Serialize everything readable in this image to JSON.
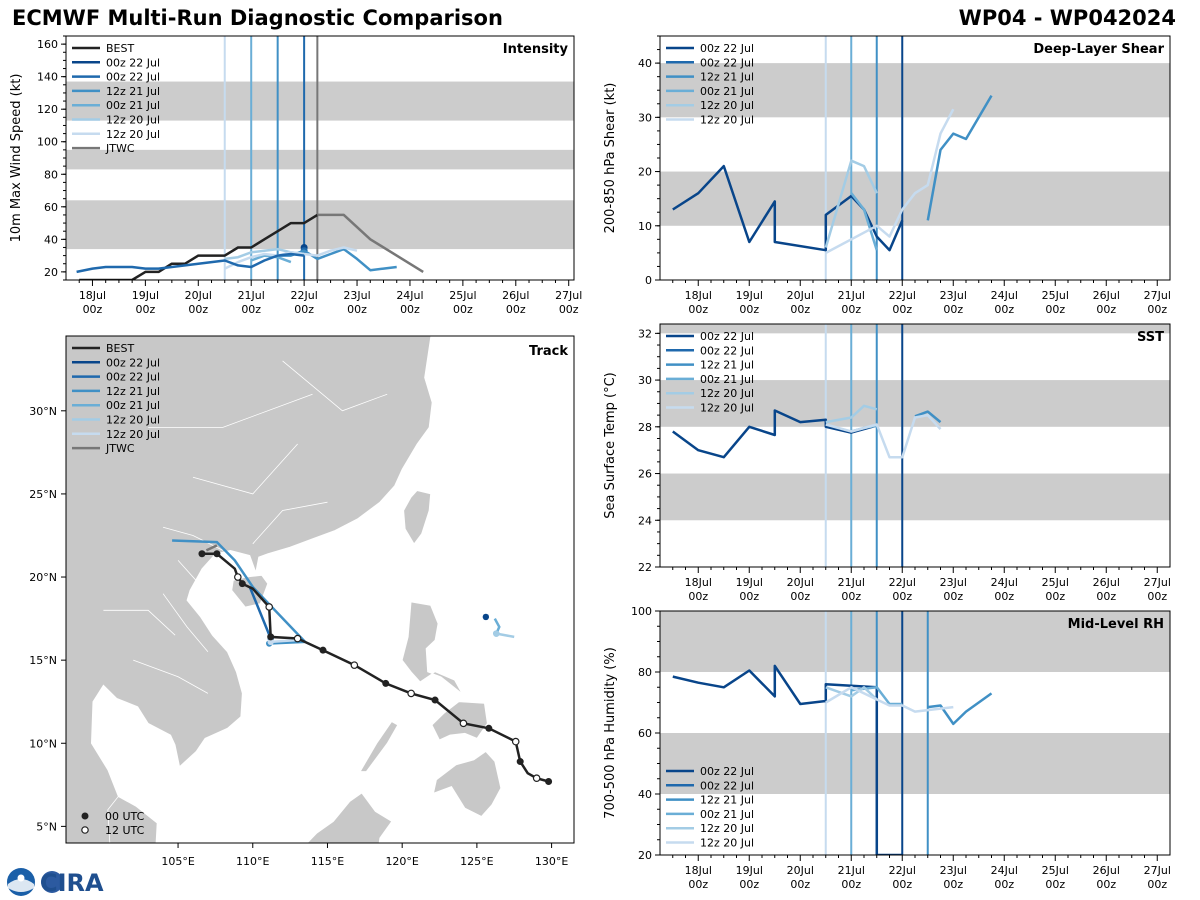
{
  "header": {
    "title": "ECMWF Multi-Run Diagnostic Comparison",
    "storm_id": "WP04 - WP042024"
  },
  "logos": {
    "noaa_text": "NOAA",
    "cira_text": "CIRA"
  },
  "time_ticks": [
    "18Jul\n00z",
    "19Jul\n00z",
    "20Jul\n00z",
    "21Jul\n00z",
    "22Jul\n00z",
    "23Jul\n00z",
    "24Jul\n00z",
    "25Jul\n00z",
    "26Jul\n00z",
    "27Jul\n00z"
  ],
  "colors": {
    "best": "#222222",
    "jtwc": "#777777",
    "r00z22a": "#08458a",
    "r00z22b": "#1f69ad",
    "r12z21": "#4090c5",
    "r00z21": "#6aaed6",
    "r12z20a": "#a3cce5",
    "r12z20b": "#c6dbef",
    "band": "#cccccc"
  },
  "legend_labels": {
    "best": "BEST",
    "r00z22a": "00z 22 Jul",
    "r00z22b": "00z 22 Jul",
    "r12z21": "12z 21 Jul",
    "r00z21": "00z 21 Jul",
    "r12z20a": "12z 20 Jul",
    "r12z20b": "12z 20 Jul",
    "jtwc": "JTWC"
  },
  "chart_data": [
    {
      "id": "intensity",
      "type": "line",
      "title": "Intensity",
      "ylabel": "10m Max Wind Speed (kt)",
      "xlim": [
        -0.5,
        9.1
      ],
      "ylim": [
        15,
        165
      ],
      "yticks": [
        20,
        40,
        60,
        80,
        100,
        120,
        140,
        160
      ],
      "bands": [
        [
          34,
          64
        ],
        [
          83,
          95
        ],
        [
          113,
          137
        ]
      ],
      "vlines": [
        {
          "run": "r12z20b",
          "x": 2.5
        },
        {
          "run": "r00z21",
          "x": 3.0
        },
        {
          "run": "r12z21",
          "x": 3.5
        },
        {
          "run": "r00z22b",
          "x": 4.0
        },
        {
          "run": "jtwc",
          "x": 4.25
        }
      ],
      "series": [
        {
          "key": "best",
          "name": "BEST",
          "x": [
            -0.25,
            0,
            0.25,
            0.5,
            0.75,
            1.0,
            1.25,
            1.5,
            1.75,
            2.0,
            2.25,
            2.5,
            2.75,
            3.0,
            3.25,
            3.5,
            3.75,
            4.0,
            4.25
          ],
          "y": [
            15,
            15,
            15,
            15,
            15,
            20,
            20,
            25,
            25,
            30,
            30,
            30,
            35,
            35,
            40,
            45,
            50,
            50,
            55
          ]
        },
        {
          "key": "r00z22a",
          "name": "00z 22 Jul",
          "x": [
            4.0
          ],
          "y": [
            35
          ],
          "marker": true
        },
        {
          "key": "r00z22b",
          "name": "00z 22 Jul",
          "x": [
            4.0
          ],
          "y": [
            33
          ],
          "marker": true
        },
        {
          "key": "r12z21",
          "name": "12z 21 Jul",
          "x": [
            3.5,
            3.75,
            4.0,
            4.25,
            4.5,
            4.75,
            5.0,
            5.25,
            5.5,
            5.75
          ],
          "y": [
            30,
            30,
            33,
            28,
            31,
            34,
            28,
            21,
            22,
            23
          ]
        },
        {
          "key": "r00z21",
          "name": "00z 21 Jul",
          "x": [
            3.0,
            3.25,
            3.5,
            3.75
          ],
          "y": [
            27,
            30,
            29,
            26
          ]
        },
        {
          "key": "r12z20a",
          "name": "12z 20 Jul",
          "x": [
            2.5,
            2.75,
            3.0,
            3.25,
            3.5,
            3.75,
            4.0
          ],
          "y": [
            28,
            29,
            32,
            33,
            34,
            32,
            31
          ]
        },
        {
          "key": "r12z20b",
          "name": "12z 20 Jul",
          "x": [
            2.5,
            2.75,
            3.0,
            3.25,
            3.5,
            3.75,
            4.0,
            4.25,
            4.5,
            4.75,
            5.0
          ],
          "y": [
            22,
            26,
            29,
            31,
            30,
            32,
            31,
            30,
            33,
            35,
            33
          ]
        },
        {
          "key": "jtwc",
          "name": "JTWC",
          "x": [
            4.25,
            4.75,
            5.25,
            6.25
          ],
          "y": [
            55,
            55,
            40,
            20
          ]
        },
        {
          "key": "r00z22b",
          "name": "00z 22 Jul (pre)",
          "x": [
            -0.3,
            0,
            0.25,
            0.5,
            0.75,
            1.0,
            1.25,
            1.5,
            1.75,
            2.0,
            2.25,
            2.5,
            2.75,
            3.0,
            3.25,
            3.5,
            3.75,
            4.0
          ],
          "y": [
            20,
            22,
            23,
            23,
            23,
            22,
            22,
            23,
            24,
            25,
            26,
            27,
            24,
            23,
            27,
            30,
            31,
            30
          ],
          "legend": false
        }
      ]
    },
    {
      "id": "shear",
      "type": "line",
      "title": "Deep-Layer Shear",
      "ylabel": "200-850 hPa Shear (kt)",
      "xlim": [
        -0.75,
        9.25
      ],
      "ylim": [
        0,
        45
      ],
      "yticks": [
        0,
        10,
        20,
        30,
        40
      ],
      "bands": [
        [
          10,
          20
        ],
        [
          30,
          40
        ]
      ],
      "vlines": [
        {
          "run": "r12z20b",
          "x": 2.5
        },
        {
          "run": "r00z21",
          "x": 3.0
        },
        {
          "run": "r12z21",
          "x": 3.5
        },
        {
          "run": "r00z22a",
          "x": 4.0
        }
      ],
      "series": [
        {
          "key": "r00z22a",
          "name": "00z 22 Jul",
          "x": [
            -0.5,
            0,
            0.5,
            1.0,
            1.5,
            1.5,
            2.5,
            2.5,
            3.0,
            3.25,
            3.5,
            3.75,
            4.0
          ],
          "y": [
            13,
            16,
            21,
            7,
            14.5,
            7,
            5.5,
            12,
            15.5,
            13,
            8,
            5.5,
            11
          ]
        },
        {
          "key": "r12z21",
          "name": "12z 21 Jul",
          "x": [
            4.5,
            4.75,
            5.0,
            5.25,
            5.75
          ],
          "y": [
            11,
            24,
            27,
            26,
            34
          ]
        },
        {
          "key": "r00z21",
          "name": "00z 21 Jul",
          "x": [
            3.0,
            3.25,
            3.5
          ],
          "y": [
            16,
            13,
            5.5
          ]
        },
        {
          "key": "r12z20a",
          "name": "12z 20 Jul",
          "x": [
            2.5,
            3.0,
            3.25,
            3.5
          ],
          "y": [
            6,
            22,
            21,
            16
          ]
        },
        {
          "key": "r12z20b",
          "name": "12z 20 Jul",
          "x": [
            2.5,
            3.5,
            3.75,
            4.0,
            4.25,
            4.5,
            4.75,
            5.0
          ],
          "y": [
            5,
            10,
            8,
            13,
            16,
            17.5,
            27,
            31.5
          ]
        }
      ]
    },
    {
      "id": "sst",
      "type": "line",
      "title": "SST",
      "ylabel": "Sea Surface Temp (°C)",
      "xlim": [
        -0.75,
        9.25
      ],
      "ylim": [
        22,
        32.4
      ],
      "yticks": [
        22,
        24,
        26,
        28,
        30,
        32
      ],
      "bands": [
        [
          24,
          26
        ],
        [
          28,
          30
        ],
        [
          32,
          33
        ]
      ],
      "vlines": [
        {
          "run": "r12z20b",
          "x": 2.5
        },
        {
          "run": "r00z21",
          "x": 3.0
        },
        {
          "run": "r12z21",
          "x": 3.5
        },
        {
          "run": "r00z22a",
          "x": 4.0
        }
      ],
      "series": [
        {
          "key": "r00z22a",
          "name": "00z 22 Jul",
          "x": [
            -0.5,
            0,
            0.5,
            1.0,
            1.5,
            1.5,
            2.0,
            2.5,
            2.5,
            3.0,
            3.5
          ],
          "y": [
            27.8,
            27.0,
            26.7,
            28.0,
            27.65,
            28.7,
            28.2,
            28.3,
            28.0,
            27.75,
            28.05
          ]
        },
        {
          "key": "r12z21",
          "name": "12z 21 Jul",
          "x": [
            4.25,
            4.5,
            4.75
          ],
          "y": [
            28.45,
            28.65,
            28.2
          ]
        },
        {
          "key": "r00z21",
          "name": "00z 21 Jul",
          "x": [
            3.0,
            3.25,
            3.5
          ],
          "y": [
            27.8,
            27.95,
            28.05
          ]
        },
        {
          "key": "r12z20a",
          "name": "12z 20 Jul",
          "x": [
            2.5,
            3.0,
            3.25,
            3.5
          ],
          "y": [
            28.2,
            28.4,
            28.9,
            28.75
          ]
        },
        {
          "key": "r12z20b",
          "name": "12z 20 Jul",
          "x": [
            2.5,
            3.0,
            3.5,
            3.75,
            4.0,
            4.25,
            4.5,
            4.75
          ],
          "y": [
            28.1,
            27.8,
            28.1,
            26.7,
            26.7,
            28.4,
            28.5,
            27.9
          ]
        }
      ]
    },
    {
      "id": "rh",
      "type": "line",
      "title": "Mid-Level RH",
      "ylabel": "700-500 hPa Humidity (%)",
      "xlim": [
        -0.75,
        9.25
      ],
      "ylim": [
        20,
        100
      ],
      "yticks": [
        20,
        40,
        60,
        80,
        100
      ],
      "bands": [
        [
          40,
          60
        ],
        [
          80,
          100
        ]
      ],
      "vlines": [
        {
          "run": "r12z20b",
          "x": 2.5
        },
        {
          "run": "r00z21",
          "x": 3.0
        },
        {
          "run": "r12z21",
          "x": 3.5
        },
        {
          "run": "r00z22a",
          "x": 4.0
        },
        {
          "run": "r12z21",
          "x": 4.5
        }
      ],
      "series": [
        {
          "key": "r00z22a",
          "name": "00z 22 Jul",
          "x": [
            -0.5,
            0,
            0.5,
            1.0,
            1.5,
            1.5,
            2.0,
            2.5,
            2.5,
            3.5,
            3.5,
            4.0
          ],
          "y": [
            78.5,
            76.5,
            75,
            80.5,
            72,
            82,
            69.5,
            70.5,
            76,
            75,
            20,
            20
          ]
        },
        {
          "key": "r12z21",
          "name": "12z 21 Jul",
          "x": [
            4.5,
            4.75,
            5.0,
            5.25,
            5.75
          ],
          "y": [
            68.5,
            69,
            63,
            67,
            73
          ]
        },
        {
          "key": "r00z21",
          "name": "00z 21 Jul",
          "x": [
            3.0,
            3.5,
            3.75,
            4.0
          ],
          "y": [
            74,
            75,
            69.5,
            69.5
          ]
        },
        {
          "key": "r12z20a",
          "name": "12z 20 Jul",
          "x": [
            2.5,
            3.0,
            3.25,
            3.5
          ],
          "y": [
            75,
            72,
            75,
            71
          ]
        },
        {
          "key": "r12z20b",
          "name": "12z 20 Jul",
          "x": [
            2.5,
            3.0,
            3.5,
            3.75,
            4.0,
            4.25,
            4.5,
            4.75,
            5.0
          ],
          "y": [
            70,
            75,
            71,
            69,
            69,
            67,
            67.5,
            68,
            68.5
          ]
        }
      ]
    },
    {
      "id": "track",
      "type": "scatter",
      "title": "Track",
      "lon_range": [
        97.5,
        131.5
      ],
      "lat_range": [
        4,
        34.5
      ],
      "lon_ticks": [
        105,
        110,
        115,
        120,
        125,
        130
      ],
      "lon_tick_labels": [
        "105°E",
        "110°E",
        "115°E",
        "120°E",
        "125°E",
        "130°E"
      ],
      "lat_ticks": [
        5,
        10,
        15,
        20,
        25,
        30
      ],
      "lat_tick_labels": [
        "5°N",
        "10°N",
        "15°N",
        "20°N",
        "25°N",
        "30°N"
      ],
      "marker_legend": {
        "utc00": "00 UTC",
        "utc12": "12 UTC"
      },
      "best_track": [
        {
          "lon": 129.8,
          "lat": 7.7,
          "h": 0
        },
        {
          "lon": 129.0,
          "lat": 7.9,
          "h": 12
        },
        {
          "lon": 128.4,
          "lat": 8.2,
          "h": 6
        },
        {
          "lon": 127.9,
          "lat": 8.9,
          "h": 0
        },
        {
          "lon": 127.6,
          "lat": 10.1,
          "h": 12
        },
        {
          "lon": 125.8,
          "lat": 10.9,
          "h": 0
        },
        {
          "lon": 124.1,
          "lat": 11.2,
          "h": 12
        },
        {
          "lon": 122.2,
          "lat": 12.6,
          "h": 0
        },
        {
          "lon": 120.6,
          "lat": 13.0,
          "h": 12
        },
        {
          "lon": 118.9,
          "lat": 13.6,
          "h": 0
        },
        {
          "lon": 116.8,
          "lat": 14.7,
          "h": 12
        },
        {
          "lon": 114.7,
          "lat": 15.6,
          "h": 0
        },
        {
          "lon": 113.0,
          "lat": 16.3,
          "h": 12
        },
        {
          "lon": 111.2,
          "lat": 16.4,
          "h": 0
        },
        {
          "lon": 111.1,
          "lat": 18.2,
          "h": 12
        },
        {
          "lon": 110.0,
          "lat": 19.3,
          "h": 6
        },
        {
          "lon": 109.3,
          "lat": 19.6,
          "h": 0
        },
        {
          "lon": 109.0,
          "lat": 20.0,
          "h": 12
        },
        {
          "lon": 108.8,
          "lat": 20.5,
          "h": 6
        },
        {
          "lon": 107.6,
          "lat": 21.4,
          "h": 0
        },
        {
          "lon": 106.6,
          "lat": 21.4,
          "h": 0
        }
      ],
      "jtwc_track": [
        {
          "lon": 107.6,
          "lat": 21.9
        },
        {
          "lon": 106.9,
          "lat": 21.6
        }
      ],
      "runs": [
        {
          "key": "r00z22a",
          "points": [
            {
              "lon": 125.6,
              "lat": 17.6
            }
          ]
        },
        {
          "key": "r00z22b",
          "points": [
            {
              "lon": 111.2,
              "lat": 16.3
            },
            {
              "lon": 110.8,
              "lat": 17.2
            },
            {
              "lon": 109.8,
              "lat": 19.4
            }
          ]
        },
        {
          "key": "r12z21",
          "points": [
            {
              "lon": 111.1,
              "lat": 16.0
            },
            {
              "lon": 113.5,
              "lat": 16.1
            },
            {
              "lon": 110.0,
              "lat": 19.4
            },
            {
              "lon": 108.8,
              "lat": 21.0
            },
            {
              "lon": 107.6,
              "lat": 22.1
            },
            {
              "lon": 104.6,
              "lat": 22.2
            }
          ]
        },
        {
          "key": "r00z21",
          "points": [
            {
              "lon": 126.3,
              "lat": 16.6
            },
            {
              "lon": 126.5,
              "lat": 17.0
            },
            {
              "lon": 126.2,
              "lat": 17.5
            }
          ]
        },
        {
          "key": "r12z20a",
          "points": [
            {
              "lon": 126.3,
              "lat": 16.6
            },
            {
              "lon": 127.5,
              "lat": 16.4
            }
          ]
        },
        {
          "key": "r12z20b",
          "points": [
            {
              "lon": 111.2,
              "lat": 16.1
            },
            {
              "lon": 112.8,
              "lat": 16.2
            }
          ]
        }
      ]
    }
  ]
}
